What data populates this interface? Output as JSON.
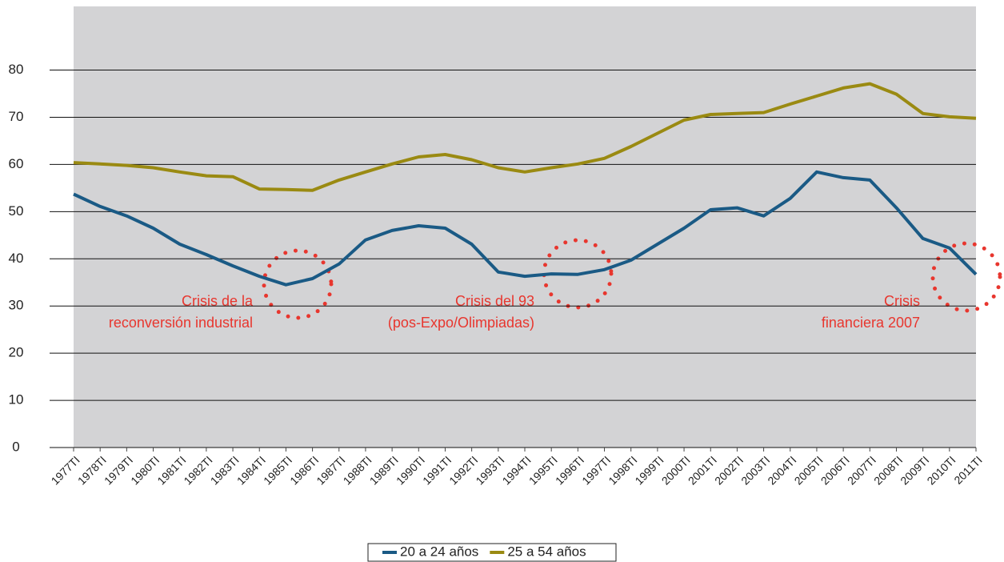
{
  "chart_data": {
    "type": "line",
    "categories": [
      "1977TI",
      "1978TI",
      "1979TI",
      "1980TI",
      "1981TI",
      "1982TI",
      "1983TI",
      "1984TI",
      "1985TI",
      "1986TI",
      "1987TI",
      "1988TI",
      "1989TI",
      "1990TI",
      "1991TI",
      "1992TI",
      "1993TI",
      "1994TI",
      "1995TI",
      "1996TI",
      "1997TI",
      "1998TI",
      "1999TI",
      "2000TI",
      "2001TI",
      "2002TI",
      "2003TI",
      "2004TI",
      "2005TI",
      "2006TI",
      "2007TI",
      "2008TI",
      "2009TI",
      "2010TI",
      "2011TI"
    ],
    "series": [
      {
        "name": "20 a 24 años",
        "color": "#1a5a85",
        "values": [
          53.7,
          51.1,
          49.1,
          46.5,
          43.1,
          40.9,
          38.5,
          36.3,
          34.5,
          35.8,
          38.9,
          44,
          46,
          47,
          46.5,
          43.1,
          37.2,
          36.3,
          36.8,
          36.7,
          37.7,
          39.7,
          43.1,
          46.5,
          50.4,
          50.8,
          49.1,
          52.8,
          58.4,
          57.2,
          56.7,
          50.8,
          44.3,
          42.3,
          36.7
        ]
      },
      {
        "name": "25 a 54 años",
        "color": "#9a8a12",
        "values": [
          60.4,
          60.1,
          59.8,
          59.3,
          58.4,
          57.6,
          57.4,
          54.8,
          54.7,
          54.5,
          56.7,
          58.4,
          60.1,
          61.6,
          62.1,
          61,
          59.3,
          58.4,
          59.3,
          60.1,
          61.3,
          63.8,
          66.6,
          69.4,
          70.6,
          70.8,
          71,
          72.8,
          74.5,
          76.2,
          77.1,
          74.9,
          70.8,
          70.1,
          69.8
        ]
      }
    ],
    "annotations": [
      "Crisis de la",
      "reconversión industrial",
      "Crisis del 93",
      "(pos-Expo/Olimpiadas)",
      "Crisis",
      "financiera 2007"
    ],
    "ylim": [
      0,
      93.5
    ],
    "yticks": [
      0,
      10,
      20,
      30,
      40,
      50,
      60,
      70,
      80
    ],
    "grid": true,
    "legend": "bottom"
  }
}
